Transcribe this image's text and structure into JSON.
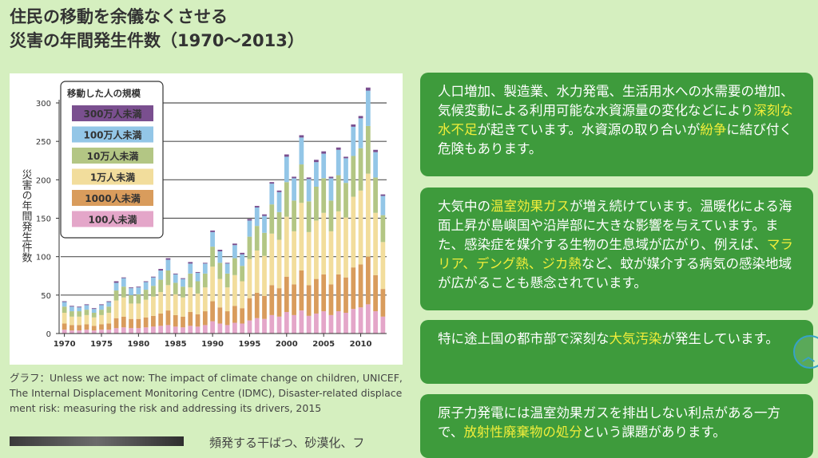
{
  "page": {
    "title_line1": "住民の移動を余儀なくさせる",
    "title_line2": "災害の年間発生件数（1970〜2013）"
  },
  "chart_data": {
    "type": "bar",
    "stacked": true,
    "ylabel": "災害の年間発生件数",
    "ylim": [
      0,
      300
    ],
    "yticks": [
      0,
      50,
      100,
      150,
      200,
      250,
      300
    ],
    "xticks": [
      "1970",
      "1975",
      "1980",
      "1985",
      "1990",
      "1995",
      "2000",
      "2005",
      "2010"
    ],
    "grid": true,
    "legend_title": "移動した人の規模",
    "legend_position": "top-left",
    "categories": [
      1970,
      1971,
      1972,
      1973,
      1974,
      1975,
      1976,
      1977,
      1978,
      1979,
      1980,
      1981,
      1982,
      1983,
      1984,
      1985,
      1986,
      1987,
      1988,
      1989,
      1990,
      1991,
      1992,
      1993,
      1994,
      1995,
      1996,
      1997,
      1998,
      1999,
      2000,
      2001,
      2002,
      2003,
      2004,
      2005,
      2006,
      2007,
      2008,
      2009,
      2010,
      2011,
      2012,
      2013
    ],
    "series": [
      {
        "name": "100人未満",
        "color": "#e4a6c9",
        "values": [
          5,
          4,
          4,
          5,
          4,
          5,
          5,
          7,
          8,
          7,
          7,
          8,
          9,
          10,
          11,
          9,
          8,
          10,
          9,
          11,
          16,
          13,
          11,
          14,
          13,
          17,
          20,
          19,
          24,
          22,
          28,
          24,
          30,
          23,
          26,
          29,
          24,
          29,
          27,
          32,
          34,
          38,
          29,
          22
        ]
      },
      {
        "name": "1000人未満",
        "color": "#d99c5c",
        "values": [
          8,
          7,
          7,
          7,
          6,
          7,
          8,
          13,
          14,
          12,
          12,
          13,
          14,
          16,
          19,
          15,
          14,
          18,
          16,
          18,
          26,
          21,
          18,
          22,
          20,
          29,
          33,
          30,
          39,
          37,
          46,
          40,
          52,
          40,
          45,
          48,
          40,
          48,
          46,
          54,
          56,
          62,
          47,
          36
        ]
      },
      {
        "name": "1万人未満",
        "color": "#f2dd9c",
        "values": [
          14,
          11,
          11,
          12,
          11,
          12,
          14,
          23,
          25,
          20,
          20,
          23,
          25,
          28,
          33,
          27,
          25,
          32,
          27,
          31,
          45,
          37,
          31,
          40,
          35,
          51,
          55,
          52,
          67,
          63,
          78,
          69,
          88,
          69,
          76,
          80,
          69,
          82,
          78,
          92,
          96,
          108,
          81,
          61
        ]
      },
      {
        "name": "10万人未満",
        "color": "#b3c684",
        "values": [
          8,
          7,
          7,
          7,
          6,
          7,
          8,
          13,
          14,
          11,
          12,
          13,
          14,
          16,
          19,
          15,
          14,
          18,
          16,
          18,
          26,
          21,
          18,
          22,
          20,
          29,
          32,
          30,
          38,
          36,
          45,
          40,
          50,
          40,
          44,
          45,
          40,
          47,
          45,
          53,
          55,
          62,
          46,
          35
        ]
      },
      {
        "name": "100万人未満",
        "color": "#93c6e7",
        "values": [
          6,
          6,
          5,
          6,
          5,
          6,
          6,
          10,
          11,
          9,
          9,
          10,
          11,
          12,
          14,
          11,
          10,
          13,
          11,
          13,
          19,
          15,
          13,
          17,
          15,
          21,
          24,
          22,
          27,
          26,
          33,
          29,
          35,
          29,
          32,
          32,
          29,
          33,
          32,
          38,
          39,
          46,
          33,
          25
        ]
      },
      {
        "name": "300万人未満",
        "color": "#7a4f8f",
        "values": [
          1,
          1,
          1,
          1,
          1,
          1,
          1,
          2,
          1,
          1,
          1,
          1,
          1,
          2,
          2,
          1,
          1,
          2,
          1,
          1,
          2,
          2,
          1,
          2,
          2,
          2,
          2,
          2,
          2,
          2,
          3,
          2,
          3,
          2,
          3,
          3,
          2,
          3,
          2,
          3,
          3,
          4,
          3,
          2
        ]
      }
    ]
  },
  "caption": "グラフ：Unless we act now: The impact of climate change on children, UNICEF, The Internal Displacement Monitoring Centre (IDMC), Disaster-related displacement risk: measuring the risk and addressing its drivers, 2015",
  "teaser": "頻発する干ばつ、砂漠化、フ",
  "cards": [
    {
      "segments": [
        {
          "text": "人口増加、製造業、水力発電、生活用水への水需要の増加、気候変動による利用可能な水資源量の変化などにより",
          "hl": false
        },
        {
          "text": "深刻な水不足",
          "hl": true
        },
        {
          "text": "が起きています。水資源の取り合いが",
          "hl": false
        },
        {
          "text": "紛争",
          "hl": true
        },
        {
          "text": "に結び付く危険もあります。",
          "hl": false
        }
      ]
    },
    {
      "segments": [
        {
          "text": "大気中の",
          "hl": false
        },
        {
          "text": "温室効果ガス",
          "hl": true
        },
        {
          "text": "が増え続けています。温暖化による海面上昇が島嶼国や沿岸部に大きな影響を与えています。また、感染症を媒介する生物の生息域が広がり、例えば、",
          "hl": false
        },
        {
          "text": "マラリア、デング熱、ジカ熱",
          "hl": true
        },
        {
          "text": "など、蚊が媒介する病気の感染地域が広がることも懸念されています。",
          "hl": false
        }
      ]
    },
    {
      "segments": [
        {
          "text": "特に途上国の都市部で深刻な",
          "hl": false
        },
        {
          "text": "大気汚染",
          "hl": true
        },
        {
          "text": "が発生しています。",
          "hl": false
        }
      ]
    },
    {
      "segments": [
        {
          "text": "原子力発電には温室効果ガスを排出しない利点がある一方で、",
          "hl": false
        },
        {
          "text": "放射性廃棄物の処分",
          "hl": true
        },
        {
          "text": "という課題があります。",
          "hl": false
        }
      ]
    }
  ],
  "scroll_top_icon": "chevron-up-icon"
}
